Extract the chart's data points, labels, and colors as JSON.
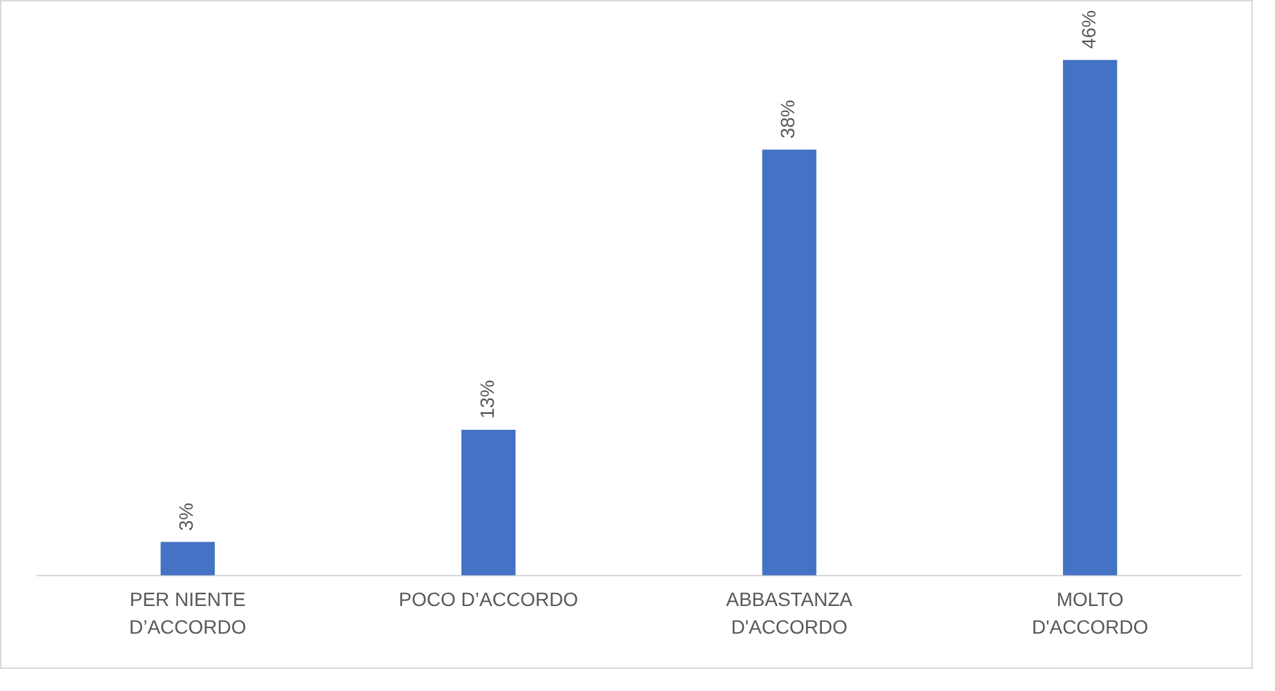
{
  "chart_data": {
    "type": "bar",
    "categories": [
      "PER NIENTE\nD’ACCORDO",
      "POCO D’ACCORDO",
      "ABBASTANZA\nD'ACCORDO",
      "MOLTO\nD'ACCORDO"
    ],
    "values": [
      3,
      13,
      38,
      46
    ],
    "value_labels": [
      "3%",
      "13%",
      "38%",
      "46%"
    ],
    "color": "#4472c4",
    "tick_labels": "x",
    "grid": false,
    "legend": false
  }
}
